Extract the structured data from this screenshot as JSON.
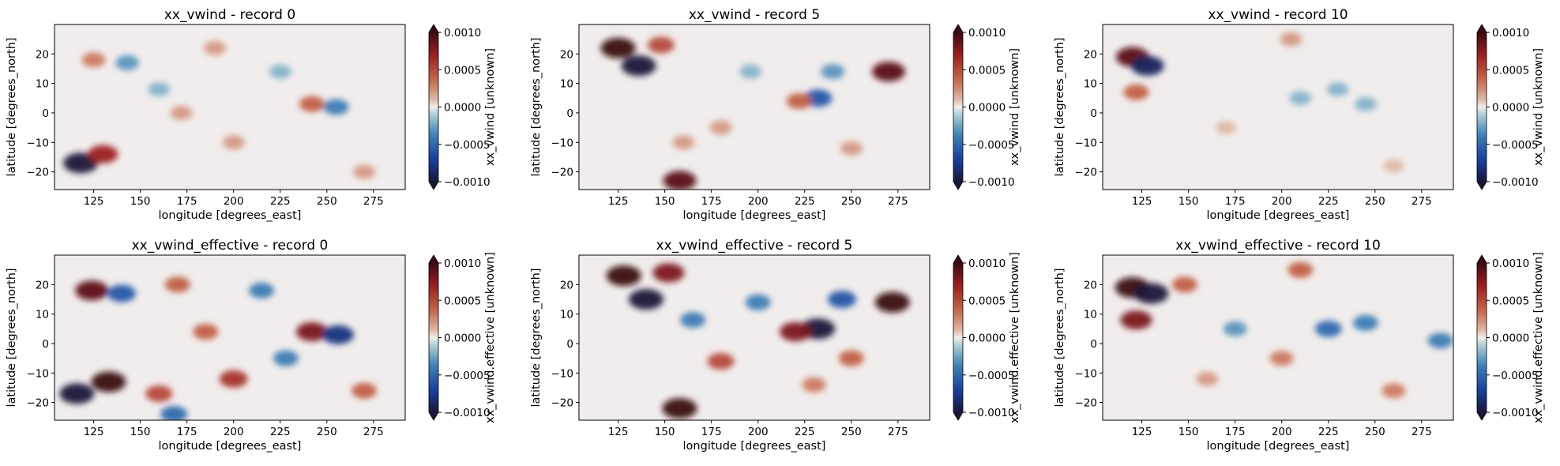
{
  "chart_data": [
    {
      "type": "heatmap",
      "title": "xx_vwind - record 0",
      "xlabel": "longitude [degrees_east]",
      "ylabel": "latitude [degrees_north]",
      "colorbar_label": "xx_vwind [unknown]",
      "xticks": [
        "125",
        "150",
        "175",
        "200",
        "225",
        "250",
        "275"
      ],
      "yticks": [
        "20",
        "10",
        "0",
        "−10",
        "−20"
      ],
      "cbar_ticks": [
        "0.0010",
        "0.0005",
        "0.0000",
        "−0.0005",
        "−0.0010"
      ],
      "xlim": [
        104,
        292
      ],
      "ylim": [
        -26,
        30
      ],
      "vlim": [
        -0.001,
        0.001
      ],
      "colormap": "balance (blue-white-red)",
      "features": [
        {
          "lon": 118,
          "lat": -17,
          "value": -0.001
        },
        {
          "lon": 130,
          "lat": -14,
          "value": 0.0007
        },
        {
          "lon": 125,
          "lat": 18,
          "value": 0.0003
        },
        {
          "lon": 143,
          "lat": 17,
          "value": -0.0003
        },
        {
          "lon": 242,
          "lat": 3,
          "value": 0.0004
        },
        {
          "lon": 255,
          "lat": 2,
          "value": -0.0004
        },
        {
          "lon": 172,
          "lat": 0,
          "value": 0.0002
        },
        {
          "lon": 200,
          "lat": -10,
          "value": 0.0002
        },
        {
          "lon": 225,
          "lat": 14,
          "value": -0.0002
        },
        {
          "lon": 160,
          "lat": 8,
          "value": -0.0002
        },
        {
          "lon": 270,
          "lat": -20,
          "value": 0.0002
        },
        {
          "lon": 190,
          "lat": 22,
          "value": 0.0002
        }
      ]
    },
    {
      "type": "heatmap",
      "title": "xx_vwind - record 5",
      "xlabel": "longitude [degrees_east]",
      "ylabel": "latitude [degrees_north]",
      "colorbar_label": "xx_vwind [unknown]",
      "xticks": [
        "125",
        "150",
        "175",
        "200",
        "225",
        "250",
        "275"
      ],
      "yticks": [
        "20",
        "10",
        "0",
        "−10",
        "−20"
      ],
      "cbar_ticks": [
        "0.0010",
        "0.0005",
        "0.0000",
        "−0.0005",
        "−0.0010"
      ],
      "xlim": [
        104,
        292
      ],
      "ylim": [
        -26,
        30
      ],
      "vlim": [
        -0.001,
        0.001
      ],
      "colormap": "balance (blue-white-red)",
      "features": [
        {
          "lon": 125,
          "lat": 22,
          "value": 0.001
        },
        {
          "lon": 136,
          "lat": 16,
          "value": -0.001
        },
        {
          "lon": 148,
          "lat": 23,
          "value": 0.0005
        },
        {
          "lon": 158,
          "lat": -23,
          "value": 0.0009
        },
        {
          "lon": 270,
          "lat": 14,
          "value": 0.0009
        },
        {
          "lon": 232,
          "lat": 5,
          "value": -0.0006
        },
        {
          "lon": 222,
          "lat": 4,
          "value": 0.0004
        },
        {
          "lon": 240,
          "lat": 14,
          "value": -0.0003
        },
        {
          "lon": 180,
          "lat": -5,
          "value": 0.0002
        },
        {
          "lon": 196,
          "lat": 14,
          "value": -0.0002
        },
        {
          "lon": 160,
          "lat": -10,
          "value": 0.0002
        },
        {
          "lon": 250,
          "lat": -12,
          "value": 0.0002
        }
      ]
    },
    {
      "type": "heatmap",
      "title": "xx_vwind - record 10",
      "xlabel": "longitude [degrees_east]",
      "ylabel": "latitude [degrees_north]",
      "colorbar_label": "xx_vwind [unknown]",
      "xticks": [
        "125",
        "150",
        "175",
        "200",
        "225",
        "250",
        "275"
      ],
      "yticks": [
        "20",
        "10",
        "0",
        "−10",
        "−20"
      ],
      "cbar_ticks": [
        "0.0010",
        "0.0005",
        "0.0000",
        "−0.0005",
        "−0.0010"
      ],
      "xlim": [
        104,
        292
      ],
      "ylim": [
        -26,
        30
      ],
      "vlim": [
        -0.001,
        0.001
      ],
      "colormap": "balance (blue-white-red)",
      "features": [
        {
          "lon": 120,
          "lat": 19,
          "value": 0.0009
        },
        {
          "lon": 128,
          "lat": 16,
          "value": -0.0009
        },
        {
          "lon": 122,
          "lat": 7,
          "value": 0.0004
        },
        {
          "lon": 210,
          "lat": 5,
          "value": -0.0002
        },
        {
          "lon": 230,
          "lat": 8,
          "value": -0.0002
        },
        {
          "lon": 205,
          "lat": 25,
          "value": 0.0002
        },
        {
          "lon": 245,
          "lat": 3,
          "value": -0.0002
        },
        {
          "lon": 170,
          "lat": -5,
          "value": 0.0001
        },
        {
          "lon": 260,
          "lat": -18,
          "value": 0.0001
        }
      ]
    },
    {
      "type": "heatmap",
      "title": "xx_vwind_effective - record 0",
      "xlabel": "longitude [degrees_east]",
      "ylabel": "latitude [degrees_north]",
      "colorbar_label": "xx_vwind.effective [unknown]",
      "xticks": [
        "125",
        "150",
        "175",
        "200",
        "225",
        "250",
        "275"
      ],
      "yticks": [
        "20",
        "10",
        "0",
        "−10",
        "−20"
      ],
      "cbar_ticks": [
        "0.0010",
        "0.0005",
        "0.0000",
        "−0.0005",
        "−0.0010"
      ],
      "xlim": [
        104,
        292
      ],
      "ylim": [
        -26,
        30
      ],
      "vlim": [
        -0.001,
        0.001
      ],
      "colormap": "balance (blue-white-red)",
      "features": [
        {
          "lon": 116,
          "lat": -17,
          "value": -0.001
        },
        {
          "lon": 133,
          "lat": -13,
          "value": 0.001
        },
        {
          "lon": 124,
          "lat": 18,
          "value": 0.0009
        },
        {
          "lon": 140,
          "lat": 17,
          "value": -0.0006
        },
        {
          "lon": 160,
          "lat": -17,
          "value": 0.0005
        },
        {
          "lon": 168,
          "lat": -24,
          "value": -0.0005
        },
        {
          "lon": 242,
          "lat": 4,
          "value": 0.0008
        },
        {
          "lon": 256,
          "lat": 3,
          "value": -0.0008
        },
        {
          "lon": 200,
          "lat": -12,
          "value": 0.0006
        },
        {
          "lon": 215,
          "lat": 18,
          "value": -0.0004
        },
        {
          "lon": 185,
          "lat": 4,
          "value": 0.0004
        },
        {
          "lon": 228,
          "lat": -5,
          "value": -0.0004
        },
        {
          "lon": 270,
          "lat": -16,
          "value": 0.0004
        },
        {
          "lon": 170,
          "lat": 20,
          "value": 0.0004
        }
      ]
    },
    {
      "type": "heatmap",
      "title": "xx_vwind_effective - record 5",
      "xlabel": "longitude [degrees_east]",
      "ylabel": "latitude [degrees_north]",
      "colorbar_label": "xx_vwind.effective [unknown]",
      "xticks": [
        "125",
        "150",
        "175",
        "200",
        "225",
        "250",
        "275"
      ],
      "yticks": [
        "20",
        "10",
        "0",
        "−10",
        "−20"
      ],
      "cbar_ticks": [
        "0.0010",
        "0.0005",
        "0.0000",
        "−0.0005",
        "−0.0010"
      ],
      "xlim": [
        104,
        292
      ],
      "ylim": [
        -26,
        30
      ],
      "vlim": [
        -0.001,
        0.001
      ],
      "colormap": "balance (blue-white-red)",
      "features": [
        {
          "lon": 128,
          "lat": 23,
          "value": 0.001
        },
        {
          "lon": 140,
          "lat": 15,
          "value": -0.001
        },
        {
          "lon": 152,
          "lat": 24,
          "value": 0.0008
        },
        {
          "lon": 158,
          "lat": -22,
          "value": 0.001
        },
        {
          "lon": 272,
          "lat": 14,
          "value": 0.001
        },
        {
          "lon": 232,
          "lat": 5,
          "value": -0.001
        },
        {
          "lon": 220,
          "lat": 4,
          "value": 0.0008
        },
        {
          "lon": 245,
          "lat": 15,
          "value": -0.0006
        },
        {
          "lon": 180,
          "lat": -6,
          "value": 0.0005
        },
        {
          "lon": 200,
          "lat": 14,
          "value": -0.0004
        },
        {
          "lon": 250,
          "lat": -5,
          "value": 0.0004
        },
        {
          "lon": 165,
          "lat": 8,
          "value": -0.0004
        },
        {
          "lon": 230,
          "lat": -14,
          "value": 0.0003
        }
      ]
    },
    {
      "type": "heatmap",
      "title": "xx_vwind_effective - record 10",
      "xlabel": "longitude [degrees_east]",
      "ylabel": "latitude [degrees_north]",
      "colorbar_label": "xx_vwind.effective [unknown]",
      "xticks": [
        "125",
        "150",
        "175",
        "200",
        "225",
        "250",
        "275"
      ],
      "yticks": [
        "20",
        "10",
        "0",
        "−10",
        "−20"
      ],
      "cbar_ticks": [
        "0.0010",
        "0.0005",
        "0.0000",
        "−0.0005",
        "−0.0010"
      ],
      "xlim": [
        104,
        292
      ],
      "ylim": [
        -26,
        30
      ],
      "vlim": [
        -0.001,
        0.001
      ],
      "colormap": "balance (blue-white-red)",
      "features": [
        {
          "lon": 120,
          "lat": 19,
          "value": 0.001
        },
        {
          "lon": 130,
          "lat": 17,
          "value": -0.001
        },
        {
          "lon": 122,
          "lat": 8,
          "value": 0.0008
        },
        {
          "lon": 148,
          "lat": 20,
          "value": 0.0004
        },
        {
          "lon": 225,
          "lat": 5,
          "value": -0.0005
        },
        {
          "lon": 210,
          "lat": 25,
          "value": 0.0004
        },
        {
          "lon": 245,
          "lat": 7,
          "value": -0.0004
        },
        {
          "lon": 285,
          "lat": 1,
          "value": -0.0004
        },
        {
          "lon": 200,
          "lat": -5,
          "value": 0.0003
        },
        {
          "lon": 175,
          "lat": 5,
          "value": -0.0003
        },
        {
          "lon": 260,
          "lat": -16,
          "value": 0.0003
        },
        {
          "lon": 160,
          "lat": -12,
          "value": 0.0002
        }
      ]
    }
  ]
}
